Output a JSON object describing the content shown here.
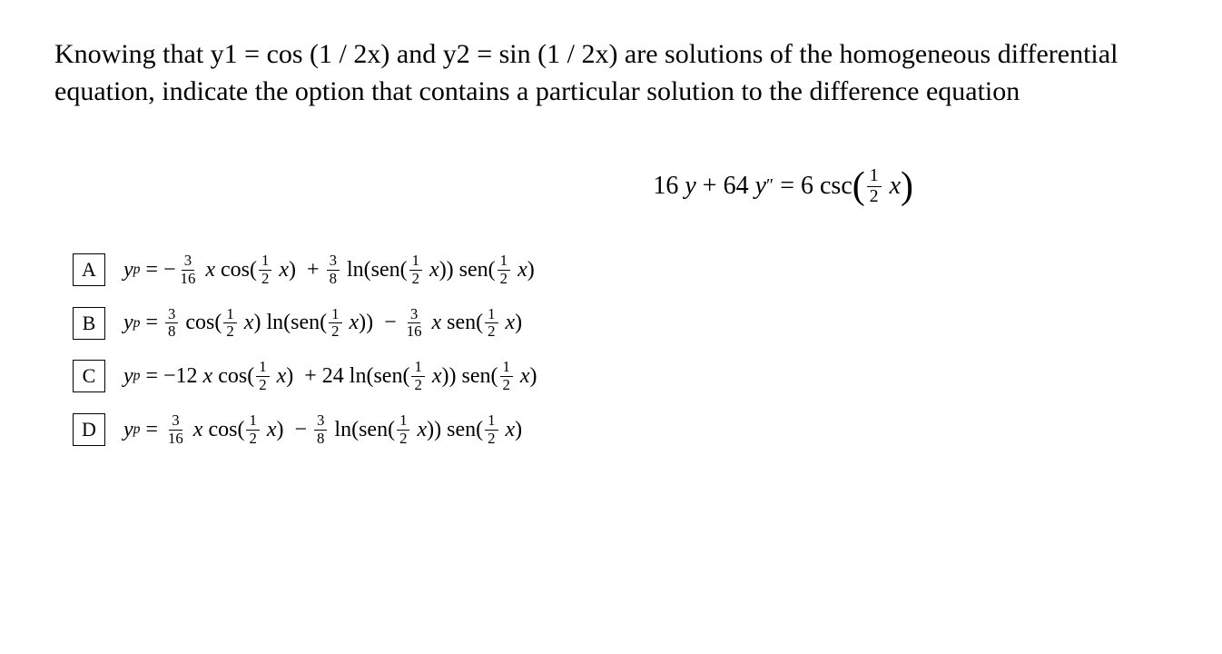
{
  "question": {
    "text": "Knowing that y1 = cos (1 / 2x) and y2 = sin (1 / 2x) are solutions of the homogeneous differential equation, indicate the option that contains a particular solution to the difference equation"
  },
  "equation": {
    "lhs_coef1": "16",
    "lhs_var1": "y",
    "lhs_coef2": "64",
    "lhs_var2": "y",
    "lhs_var2_primes": "″",
    "rhs_coef": "6",
    "rhs_func": "csc",
    "rhs_frac_num": "1",
    "rhs_frac_den": "2",
    "rhs_var": "x"
  },
  "options": [
    {
      "letter": "A",
      "yp": "y",
      "sub": "p",
      "sign1": "−",
      "frac1_num": "3",
      "frac1_den": "16",
      "term1_var": "x",
      "term1_func": "cos",
      "inner_frac_num": "1",
      "inner_frac_den": "2",
      "inner_var": "x",
      "sign2": "+",
      "frac2_num": "3",
      "frac2_den": "8",
      "term2_func1": "ln",
      "term2_func2": "sen",
      "term2_func3": "sen"
    },
    {
      "letter": "B",
      "yp": "y",
      "sub": "p",
      "frac1_num": "3",
      "frac1_den": "8",
      "term1_func": "cos",
      "inner_frac_num": "1",
      "inner_frac_den": "2",
      "inner_var": "x",
      "term1_func2": "ln",
      "term1_func3": "sen",
      "sign2": "−",
      "frac2_num": "3",
      "frac2_den": "16",
      "term2_var": "x",
      "term2_func": "sen"
    },
    {
      "letter": "C",
      "yp": "y",
      "sub": "p",
      "sign1": "−",
      "coef1": "12",
      "term1_var": "x",
      "term1_func": "cos",
      "inner_frac_num": "1",
      "inner_frac_den": "2",
      "inner_var": "x",
      "sign2": "+",
      "coef2": "24",
      "term2_func1": "ln",
      "term2_func2": "sen",
      "term2_func3": "sen"
    },
    {
      "letter": "D",
      "yp": "y",
      "sub": "p",
      "frac1_num": "3",
      "frac1_den": "16",
      "term1_var": "x",
      "term1_func": "cos",
      "inner_frac_num": "1",
      "inner_frac_den": "2",
      "inner_var": "x",
      "sign2": "−",
      "frac2_num": "3",
      "frac2_den": "8",
      "term2_func1": "ln",
      "term2_func2": "sen",
      "term2_func3": "sen"
    }
  ],
  "colors": {
    "background": "#ffffff",
    "text": "#000000",
    "border": "#000000"
  }
}
